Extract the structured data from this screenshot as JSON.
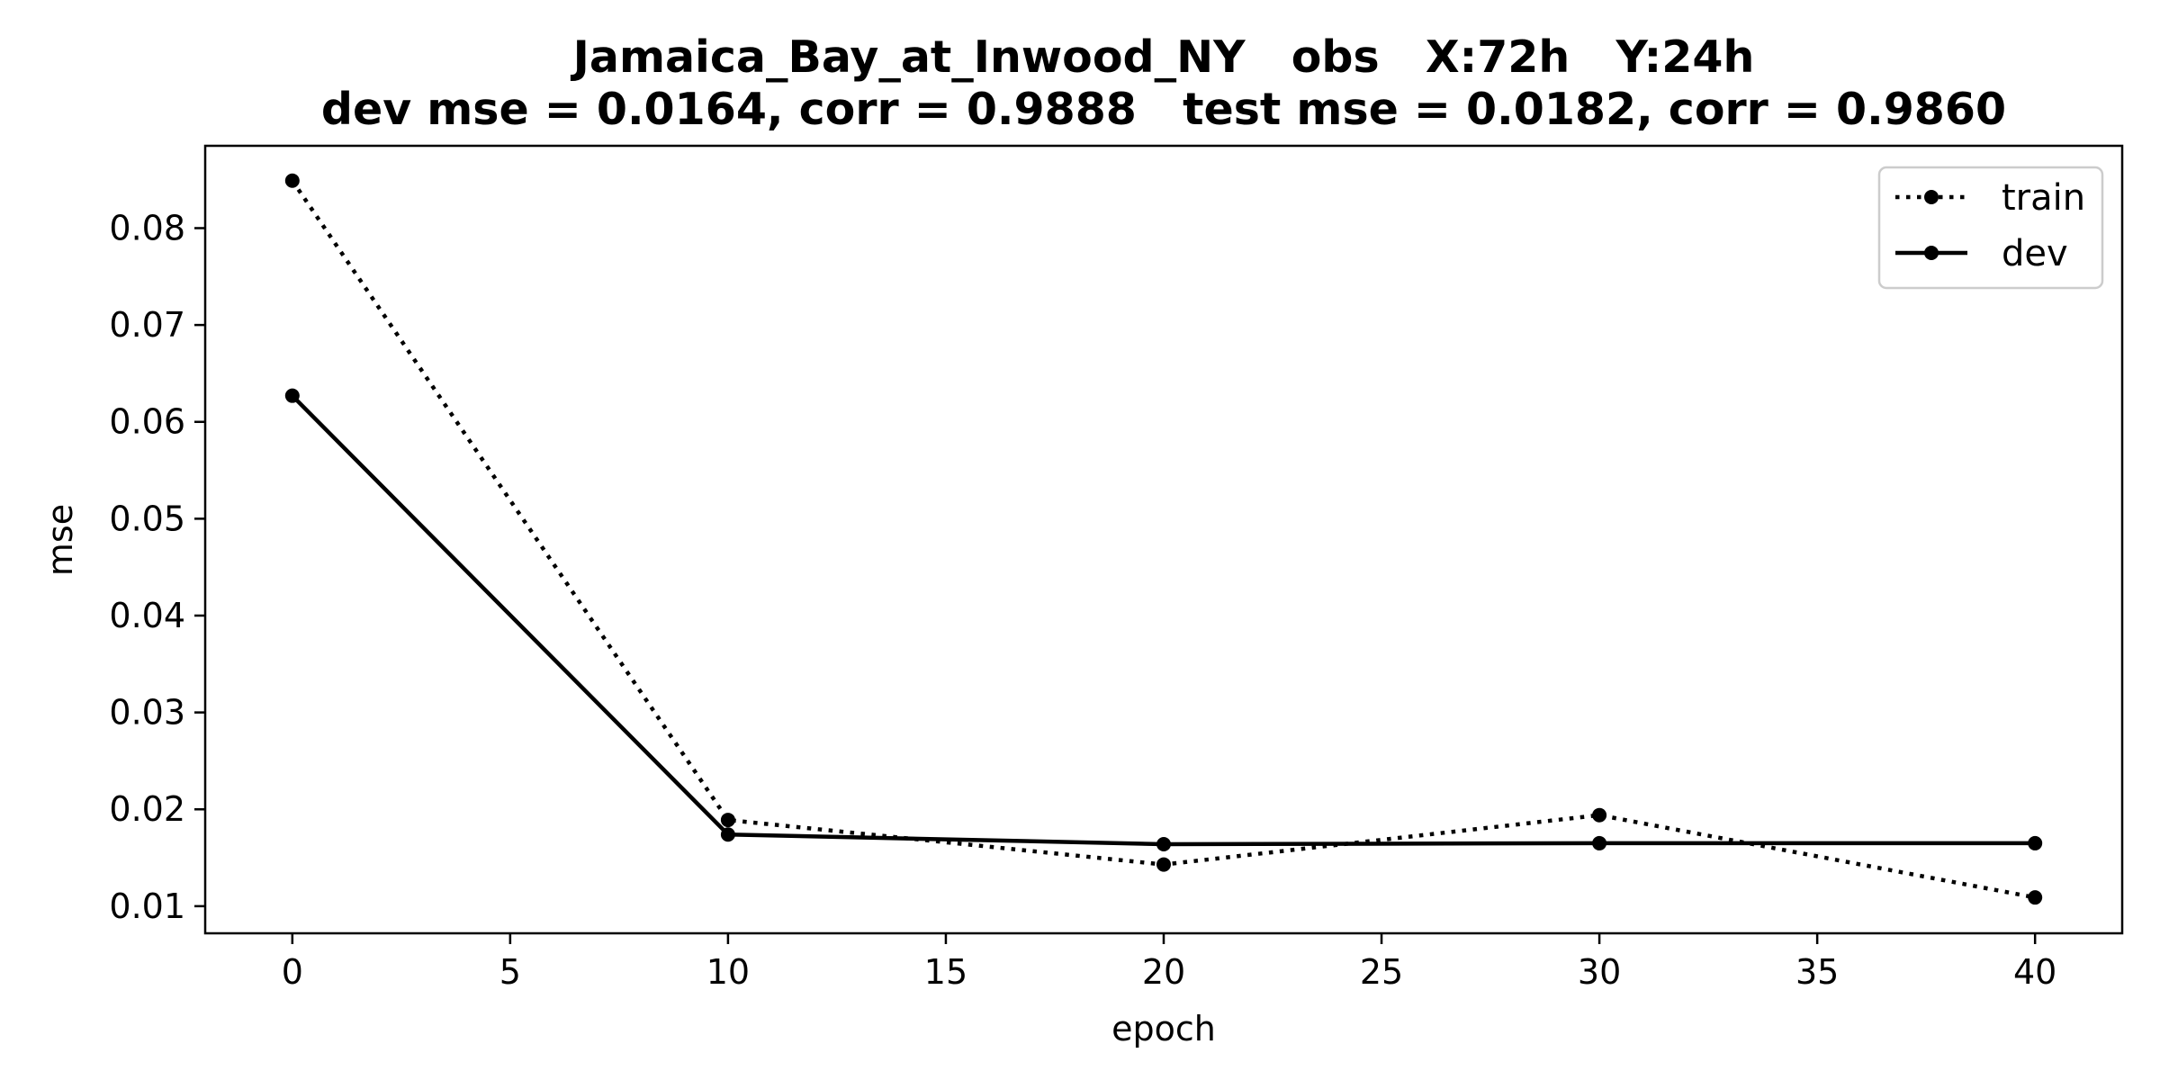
{
  "chart_data": {
    "type": "line",
    "title": "Jamaica_Bay_at_Inwood_NY   obs   X:72h   Y:24h",
    "subtitle": "dev mse = 0.0164, corr = 0.9888   test mse = 0.0182, corr = 0.9860",
    "xlabel": "epoch",
    "ylabel": "mse",
    "xlim": [
      -2,
      42
    ],
    "ylim": [
      0.0072,
      0.0885
    ],
    "xticks": [
      0,
      5,
      10,
      15,
      20,
      25,
      30,
      35,
      40
    ],
    "xtick_labels": [
      "0",
      "5",
      "10",
      "15",
      "20",
      "25",
      "30",
      "35",
      "40"
    ],
    "yticks": [
      0.01,
      0.02,
      0.03,
      0.04,
      0.05,
      0.06,
      0.07,
      0.08
    ],
    "ytick_labels": [
      "0.01",
      "0.02",
      "0.03",
      "0.04",
      "0.05",
      "0.06",
      "0.07",
      "0.08"
    ],
    "grid": false,
    "legend_position": "top-right",
    "series": [
      {
        "name": "train",
        "style": "dotted",
        "color": "#000000",
        "x": [
          0,
          10,
          20,
          30,
          40
        ],
        "values": [
          0.0849,
          0.0189,
          0.0143,
          0.0194,
          0.0109
        ]
      },
      {
        "name": "dev",
        "style": "solid",
        "color": "#000000",
        "x": [
          0,
          10,
          20,
          30,
          40
        ],
        "values": [
          0.0627,
          0.0174,
          0.0164,
          0.0165,
          0.0165
        ]
      }
    ]
  }
}
